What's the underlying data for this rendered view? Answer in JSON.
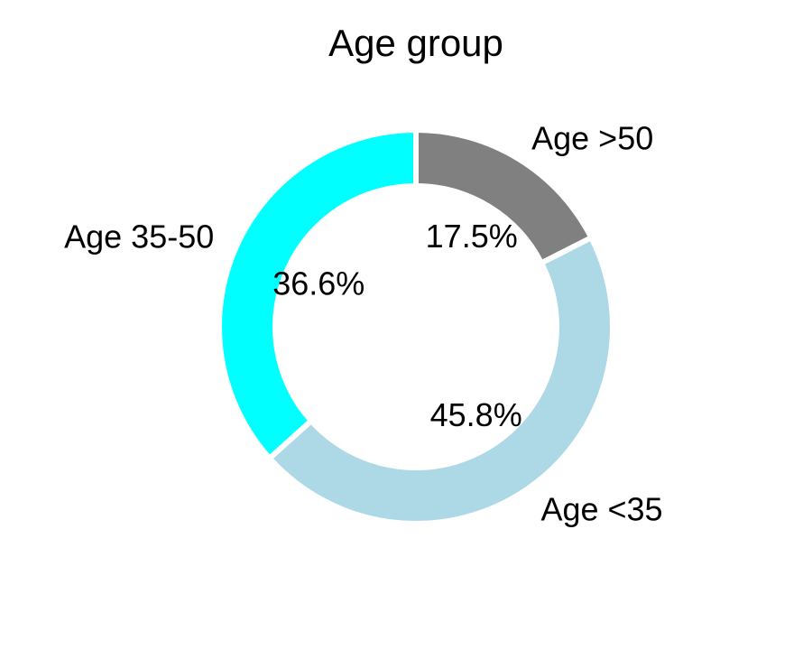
{
  "chart_data": {
    "type": "pie",
    "variant": "donut",
    "title": "Age group",
    "categories": [
      "Age >50",
      "Age <35",
      "Age 35-50"
    ],
    "values": [
      17.5,
      45.8,
      36.6
    ],
    "percent_labels": [
      "17.5%",
      "45.8%",
      "36.6%"
    ],
    "colors": [
      "#808080",
      "#add8e6",
      "#00ffff"
    ],
    "start_angle_deg": 90,
    "direction": "clockwise",
    "legend": "none"
  }
}
